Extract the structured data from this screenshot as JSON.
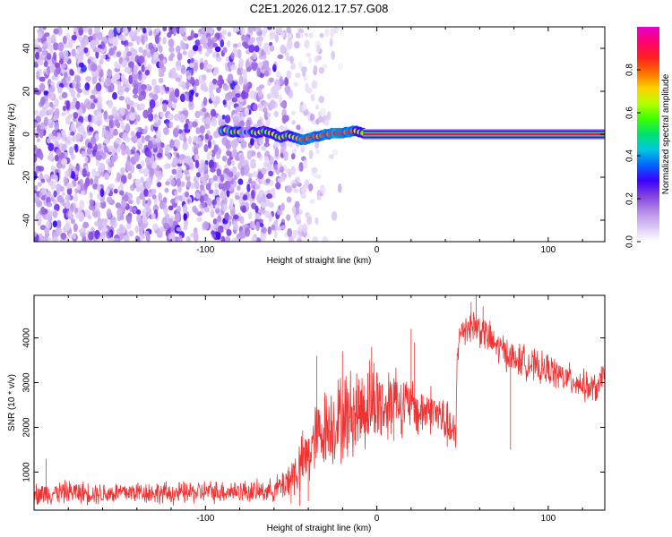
{
  "title": "C2E1.2026.012.17.57.G08",
  "chart_data": [
    {
      "type": "heatmap",
      "xlabel": "Height of straight line (km)",
      "ylabel": "Frequency (Hz)",
      "xlim": [
        -200,
        133
      ],
      "ylim": [
        -50,
        50
      ],
      "xticks": [
        -100,
        0,
        100
      ],
      "yticks": [
        -40,
        -20,
        0,
        20,
        40
      ],
      "xtick_labels": [
        "-100",
        "0",
        "100"
      ],
      "ytick_labels": [
        "-40",
        "-20",
        "0",
        "20",
        "40"
      ],
      "noise_region_x": [
        -200,
        -40
      ],
      "signal_ridge": {
        "x": [
          -90,
          -88,
          -86,
          -84,
          -82,
          -80,
          -78,
          -76,
          -74,
          -72,
          -70,
          -68,
          -66,
          -64,
          -62,
          -60,
          -58,
          -56,
          -54,
          -52,
          -50,
          -48,
          -46,
          -44,
          -42,
          -40,
          -38,
          -36,
          -34,
          -32,
          -30,
          -28,
          -26,
          -24,
          -22,
          -20,
          -18,
          -16,
          -14,
          -12,
          -10,
          -8
        ],
        "y": [
          1.5,
          2.0,
          1.5,
          1.0,
          1.2,
          1.0,
          0.8,
          1.0,
          1.2,
          1.0,
          0.5,
          1.0,
          1.5,
          1.0,
          0.5,
          0.0,
          -1.0,
          -1.5,
          -1.0,
          -0.5,
          -1.0,
          -1.5,
          -2.0,
          -2.5,
          -2.5,
          -2.0,
          -1.5,
          -1.0,
          -1.0,
          -0.5,
          0.0,
          0.0,
          0.5,
          0.5,
          0.5,
          0.5,
          1.0,
          1.0,
          1.5,
          1.5,
          1.0,
          0.5
        ],
        "amplitude": [
          0.5,
          0.7,
          0.45,
          0.6,
          0.75,
          0.65,
          0.4,
          0.3,
          0.35,
          0.6,
          0.7,
          0.65,
          0.55,
          0.6,
          0.7,
          0.65,
          0.6,
          0.7,
          0.6,
          0.55,
          0.65,
          0.7,
          0.75,
          0.8,
          0.85,
          0.8,
          0.85,
          0.8,
          0.75,
          0.8,
          0.85,
          0.8,
          0.85,
          0.9,
          0.85,
          0.85,
          0.8,
          0.85,
          0.8,
          0.7,
          0.65,
          0.6
        ]
      },
      "steady_line": {
        "x": [
          -8,
          133
        ],
        "y": 0,
        "amplitude": 0.95
      },
      "colorbar": {
        "label": "Normalized spectral amplitude",
        "range": [
          0,
          1
        ],
        "ticks": [
          "0.0",
          "0.2",
          "0.4",
          "0.6",
          "0.8"
        ],
        "colors": [
          "#ffffff",
          "#d9c4f5",
          "#b48ae8",
          "#8040e0",
          "#3a00ff",
          "#0066ff",
          "#00c8e0",
          "#00e070",
          "#3cff00",
          "#b4ff00",
          "#ffd200",
          "#ff7000",
          "#ff1f1f",
          "#ff0070",
          "#e000c8"
        ]
      }
    },
    {
      "type": "line",
      "xlabel": "Height of straight line (km)",
      "ylabel": "SNR (10 * v/v)",
      "xlim": [
        -200,
        133
      ],
      "ylim": [
        150,
        4950
      ],
      "xticks": [
        -100,
        0,
        100
      ],
      "yticks": [
        1000,
        2000,
        3000,
        4000
      ],
      "xtick_labels": [
        "-100",
        "0",
        "100"
      ],
      "ytick_labels": [
        "1000",
        "2000",
        "3000",
        "4000"
      ],
      "color": "#ee3333",
      "trend": {
        "x": [
          -200,
          -180,
          -160,
          -140,
          -120,
          -100,
          -80,
          -70,
          -60,
          -55,
          -50,
          -45,
          -40,
          -35,
          -30,
          -25,
          -20,
          -15,
          -10,
          -5,
          0,
          5,
          10,
          15,
          20,
          25,
          30,
          35,
          40,
          45,
          46,
          47,
          50,
          55,
          60,
          65,
          70,
          75,
          80,
          85,
          90,
          95,
          100,
          105,
          110,
          115,
          120,
          125,
          130,
          133
        ],
        "y": [
          500,
          560,
          520,
          560,
          520,
          560,
          580,
          560,
          600,
          700,
          900,
          1100,
          1400,
          1800,
          2000,
          2100,
          2200,
          2300,
          2400,
          2500,
          2600,
          2400,
          2800,
          2500,
          2500,
          2300,
          2450,
          2300,
          2100,
          1800,
          1700,
          3800,
          4200,
          4300,
          4200,
          4000,
          3800,
          3700,
          3500,
          3500,
          3400,
          3300,
          3300,
          3200,
          3100,
          3050,
          2950,
          2850,
          2900,
          3400
        ]
      },
      "noise_amplitude": {
        "x": [
          -200,
          -60,
          -40,
          -20,
          0,
          20,
          46,
          47,
          80,
          133
        ],
        "y": [
          300,
          300,
          900,
          1200,
          1200,
          700,
          600,
          500,
          450,
          400
        ]
      },
      "spikes": [
        {
          "x": 58,
          "y": 4950
        },
        {
          "x": 55,
          "y": 4800
        },
        {
          "x": 62,
          "y": 4700
        },
        {
          "x": -35,
          "y": 3600
        },
        {
          "x": -20,
          "y": 3700
        },
        {
          "x": -3,
          "y": 3800
        },
        {
          "x": 20,
          "y": 4200
        },
        {
          "x": 22,
          "y": 3900
        },
        {
          "x": 20,
          "y": 3200
        },
        {
          "x": -40,
          "y": 350
        },
        {
          "x": -45,
          "y": 250
        },
        {
          "x": -50,
          "y": 300
        },
        {
          "x": 78,
          "y": 1500
        },
        {
          "x": 10,
          "y": 1700
        },
        {
          "x": -193,
          "y": 1300
        }
      ]
    }
  ]
}
